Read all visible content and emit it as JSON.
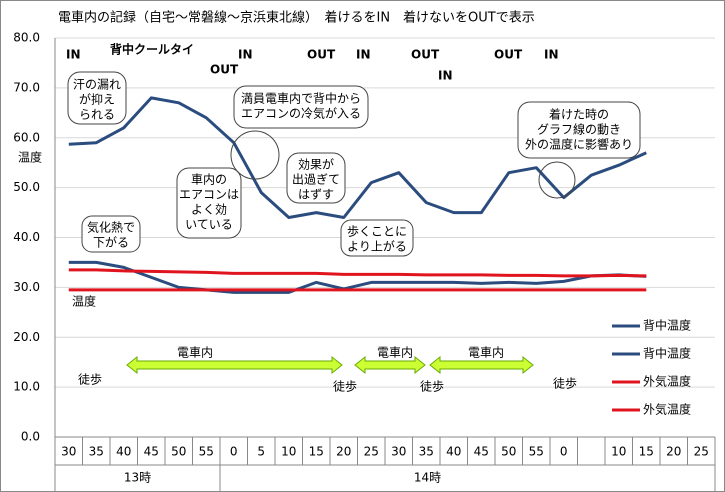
{
  "chart_data": {
    "type": "line",
    "title": "電車内の記録（自宅～常磐線～京浜東北線）　着けるをIN　着けないをOUTで表示",
    "categories": [
      "30",
      "35",
      "40",
      "45",
      "50",
      "55",
      "0",
      "5",
      "10",
      "15",
      "20",
      "25",
      "30",
      "35",
      "40",
      "45",
      "50",
      "55",
      "0",
      null,
      "10",
      "15",
      "20",
      "25"
    ],
    "x_groups": [
      "13時",
      "14時"
    ],
    "ylim": [
      0,
      80
    ],
    "yticks": [
      {
        "value": 0,
        "label": "0.0"
      },
      {
        "value": 10,
        "label": "10.0"
      },
      {
        "value": 20,
        "label": "20.0"
      },
      {
        "value": 30,
        "label": "30.0"
      },
      {
        "value": 40,
        "label": "40.0"
      },
      {
        "value": 50,
        "label": "50.0"
      },
      {
        "value": 60,
        "label": "60.0"
      },
      {
        "value": 70,
        "label": "70.0"
      },
      {
        "value": 80,
        "label": "80.0"
      }
    ],
    "grid": true,
    "legend": "right",
    "series": [
      {
        "name": "背中温度",
        "color": "#2b4c7e",
        "values": [
          58.7,
          59,
          62,
          68,
          67,
          64,
          59,
          49,
          44,
          45,
          44,
          51,
          53,
          47,
          45,
          45,
          53,
          54,
          48,
          52.5,
          54.5,
          57,
          null,
          null
        ]
      },
      {
        "name": "背中温度",
        "color": "#2b4c7e",
        "values": [
          35,
          35,
          34,
          32,
          30,
          29.5,
          29,
          29,
          29,
          31,
          29.7,
          31,
          31,
          31,
          31,
          30.8,
          31,
          30.8,
          31.2,
          32.3,
          32.5,
          32.2,
          null,
          null
        ]
      },
      {
        "name": "外気温度",
        "color": "#e0141e",
        "values": [
          33.5,
          33.5,
          33.3,
          33.2,
          33.1,
          33,
          32.8,
          32.8,
          32.8,
          32.8,
          32.6,
          32.6,
          32.6,
          32.5,
          32.5,
          32.5,
          32.4,
          32.4,
          32.3,
          32.3,
          32.4,
          32.3,
          null,
          null
        ]
      },
      {
        "name": "外気温度",
        "color": "#e0141e",
        "values": [
          29.5,
          29.5,
          29.5,
          29.5,
          29.5,
          29.5,
          29.5,
          29.5,
          29.5,
          29.5,
          29.5,
          29.5,
          29.5,
          29.5,
          29.5,
          29.5,
          29.5,
          29.5,
          29.5,
          29.5,
          29.5,
          29.5,
          null,
          null
        ]
      }
    ],
    "annotations": [
      "IN",
      "背中クールタイ",
      "OUT",
      "IN",
      "OUT",
      "IN",
      "OUT",
      "IN",
      "OUT",
      "IN",
      "温度",
      "温度",
      [
        "汗の漏れ",
        "が抑え",
        "られる"
      ],
      [
        "満員電車内で背中から",
        "エアコンの冷気が入る"
      ],
      [
        "車内の",
        "エアコンは",
        "よく効",
        "いている"
      ],
      [
        "効果が",
        "出過ぎて",
        "はずす"
      ],
      [
        "着けた時の",
        "グラフ線の動き",
        "外の温度に影響あり"
      ],
      [
        "気化熱で",
        "下がる"
      ],
      [
        "歩くことに",
        "より上がる"
      ],
      "電車内",
      "電車内",
      "電車内",
      "徒歩",
      "徒歩",
      "徒歩",
      "徒歩"
    ]
  }
}
